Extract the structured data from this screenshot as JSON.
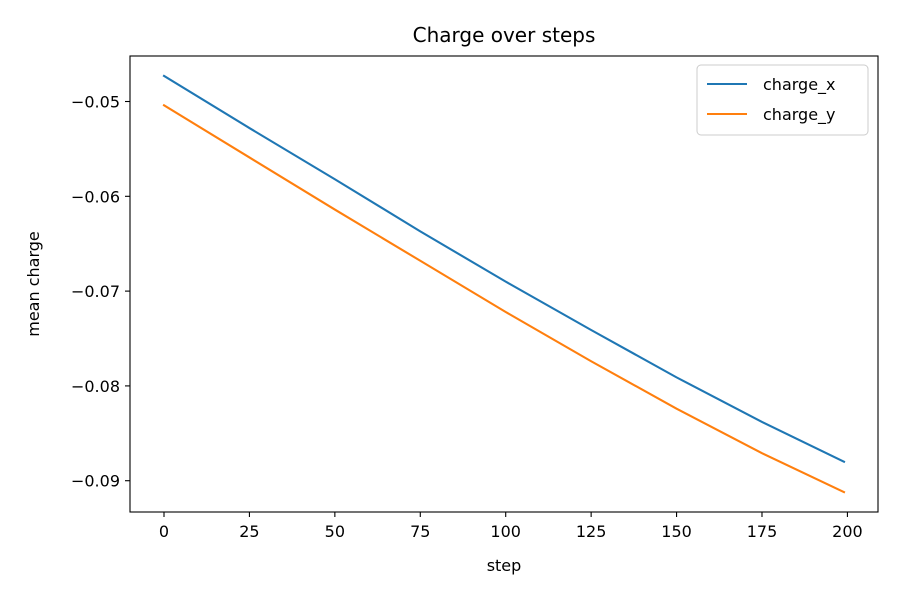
{
  "chart_data": {
    "type": "line",
    "title": "Charge over steps",
    "xlabel": "step",
    "ylabel": "mean charge",
    "xlim": [
      -9.95,
      208.95
    ],
    "ylim": [
      -0.0933,
      -0.0452
    ],
    "x_ticks": [
      0,
      25,
      50,
      75,
      100,
      125,
      150,
      175,
      200
    ],
    "x_tick_labels": [
      "0",
      "25",
      "50",
      "75",
      "100",
      "125",
      "150",
      "175",
      "200"
    ],
    "y_ticks": [
      -0.09,
      -0.08,
      -0.07,
      -0.06,
      -0.05
    ],
    "y_tick_labels": [
      "−0.09",
      "−0.08",
      "−0.07",
      "−0.06",
      "−0.05"
    ],
    "grid": false,
    "legend_position": "top-right",
    "x": [
      0,
      25,
      50,
      75,
      100,
      125,
      150,
      175,
      199
    ],
    "series": [
      {
        "name": "charge_x",
        "color": "#1f77b4",
        "values": [
          -0.0473,
          -0.0528,
          -0.0582,
          -0.0637,
          -0.069,
          -0.0741,
          -0.0791,
          -0.0838,
          -0.088
        ]
      },
      {
        "name": "charge_y",
        "color": "#ff7f0e",
        "values": [
          -0.0504,
          -0.0559,
          -0.0614,
          -0.0668,
          -0.0722,
          -0.0774,
          -0.0824,
          -0.0871,
          -0.0912
        ]
      }
    ]
  }
}
